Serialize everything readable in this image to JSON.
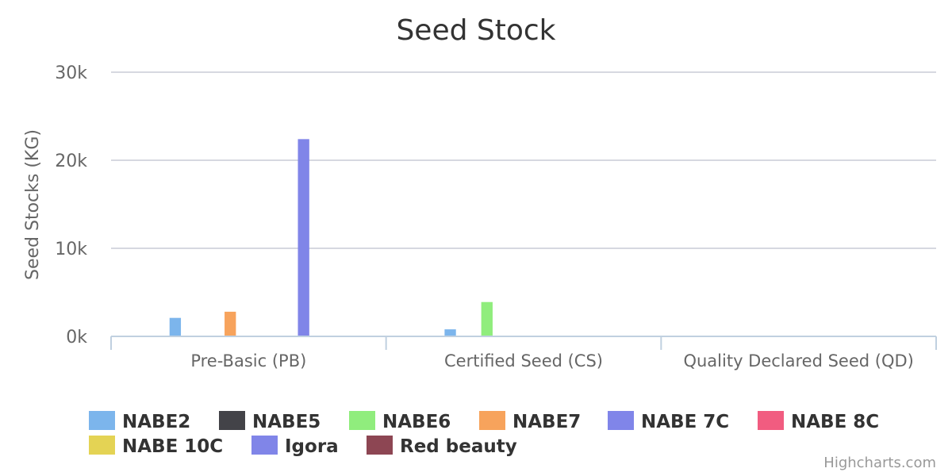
{
  "chart_data": {
    "type": "bar",
    "title": "Seed Stock",
    "xlabel": "",
    "ylabel": "Seed Stocks (KG)",
    "ylim": [
      0,
      30000
    ],
    "y_ticks": [
      "0k",
      "10k",
      "20k",
      "30k"
    ],
    "grid": true,
    "legend_position": "bottom",
    "categories": [
      "Pre-Basic (PB)",
      "Certified Seed (CS)",
      "Quality Declared Seed (QD)"
    ],
    "series": [
      {
        "name": "NABE2",
        "color": "#7cb5ec",
        "values": [
          2100,
          800,
          0
        ]
      },
      {
        "name": "NABE5",
        "color": "#434348",
        "values": [
          0,
          0,
          0
        ]
      },
      {
        "name": "NABE6",
        "color": "#90ed7d",
        "values": [
          0,
          3900,
          0
        ]
      },
      {
        "name": "NABE7",
        "color": "#f7a35c",
        "values": [
          2800,
          0,
          0
        ]
      },
      {
        "name": "NABE 7C",
        "color": "#8085e9",
        "values": [
          0,
          0,
          0
        ]
      },
      {
        "name": "NABE 8C",
        "color": "#f15c80",
        "values": [
          0,
          0,
          0
        ]
      },
      {
        "name": "NABE 10C",
        "color": "#e4d354",
        "values": [
          0,
          0,
          0
        ]
      },
      {
        "name": "Igora",
        "color": "#8085e8",
        "values": [
          22400,
          0,
          0
        ]
      },
      {
        "name": "Red beauty",
        "color": "#8d4653",
        "values": [
          0,
          0,
          0
        ]
      }
    ]
  },
  "credits": "Highcharts.com"
}
